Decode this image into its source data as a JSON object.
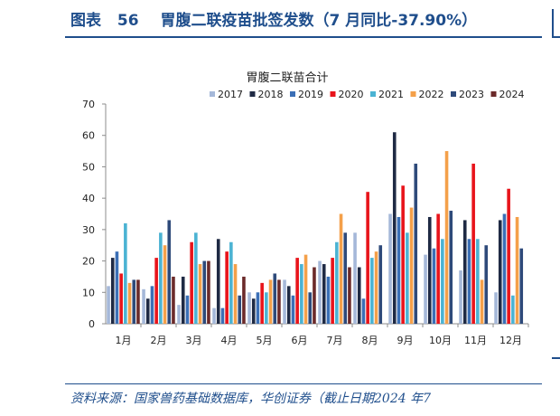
{
  "figure": {
    "label": "图表",
    "number": "56",
    "caption": "胃腹二联疫苗批签发数（7 月同比-37.90%）"
  },
  "source": "资料来源：国家兽药基础数据库，华创证券（截止日期2024 年7",
  "colors": {
    "header": "#1f4e8c",
    "axis": "#8c8c8c",
    "text": "#222222"
  },
  "chart_data": {
    "type": "bar",
    "title": "胃腹二联苗合计",
    "categories": [
      "1月",
      "2月",
      "3月",
      "4月",
      "5月",
      "6月",
      "7月",
      "8月",
      "9月",
      "10月",
      "11月",
      "12月"
    ],
    "ylim": [
      0,
      70
    ],
    "yticks": [
      0,
      10,
      20,
      30,
      40,
      50,
      60,
      70
    ],
    "legend_position": "top",
    "grid": false,
    "series": [
      {
        "name": "2017",
        "color": "#a5b8d9",
        "values": [
          12,
          11,
          6,
          5,
          10,
          14,
          20,
          29,
          35,
          22,
          17,
          10
        ]
      },
      {
        "name": "2018",
        "color": "#1f2a44",
        "values": [
          21,
          8,
          15,
          27,
          8,
          12,
          19,
          18,
          61,
          34,
          33,
          33
        ]
      },
      {
        "name": "2019",
        "color": "#3b6fb6",
        "values": [
          23,
          12,
          9,
          5,
          10,
          9,
          15,
          8,
          34,
          24,
          27,
          35
        ]
      },
      {
        "name": "2020",
        "color": "#e8141b",
        "values": [
          16,
          21,
          26,
          23,
          13,
          21,
          21,
          42,
          44,
          35,
          51,
          43
        ]
      },
      {
        "name": "2021",
        "color": "#4bb3d3",
        "values": [
          32,
          29,
          29,
          26,
          10,
          19,
          26,
          21,
          29,
          27,
          27,
          9
        ]
      },
      {
        "name": "2022",
        "color": "#f4a04a",
        "values": [
          13,
          25,
          19,
          19,
          14,
          22,
          35,
          23,
          37,
          55,
          14,
          34
        ]
      },
      {
        "name": "2023",
        "color": "#2e4a7a",
        "values": [
          14,
          33,
          20,
          9,
          16,
          10,
          29,
          25,
          51,
          36,
          25,
          24
        ]
      },
      {
        "name": "2024",
        "color": "#6b2a2a",
        "values": [
          14,
          15,
          20,
          15,
          14,
          18,
          18,
          null,
          null,
          null,
          null,
          null
        ]
      }
    ]
  }
}
